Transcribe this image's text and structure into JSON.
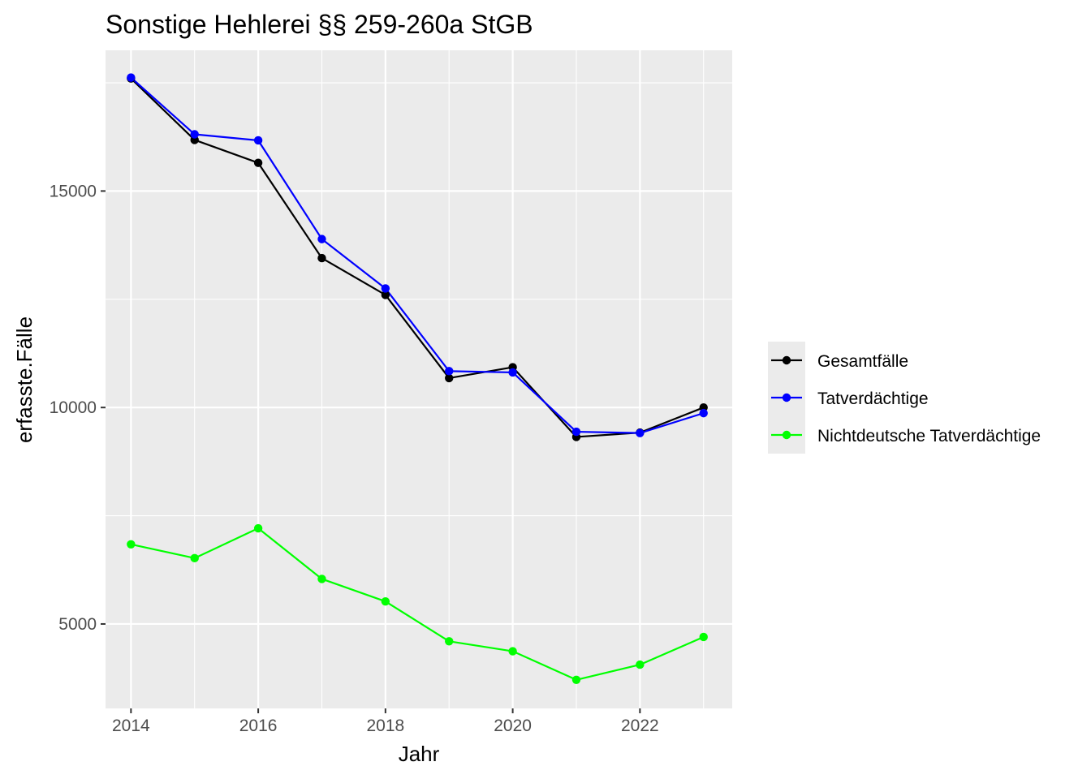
{
  "chart_data": {
    "type": "line",
    "title": "Sonstige Hehlerei §§ 259-260a StGB",
    "xlabel": "Jahr",
    "ylabel": "erfasste.Fälle",
    "x": [
      2014,
      2015,
      2016,
      2017,
      2018,
      2019,
      2020,
      2021,
      2022,
      2023
    ],
    "xlim": [
      2013.6,
      2023.45
    ],
    "ylim": [
      3050,
      18250
    ],
    "x_ticks": [
      2014,
      2016,
      2018,
      2020,
      2022
    ],
    "x_tick_labels": [
      "2014",
      "2016",
      "2018",
      "2020",
      "2022"
    ],
    "y_ticks": [
      5000,
      10000,
      15000
    ],
    "y_tick_labels": [
      "5000",
      "10000",
      "15000"
    ],
    "grid": true,
    "legend_position": "right",
    "series": [
      {
        "name": "Gesamtfälle",
        "color": "#000000",
        "values": [
          17600,
          16180,
          15650,
          13450,
          12600,
          10680,
          10930,
          9320,
          9420,
          10000
        ]
      },
      {
        "name": "Tatverdächtige",
        "color": "#0000ff",
        "values": [
          17620,
          16310,
          16170,
          13890,
          12750,
          10840,
          10810,
          9440,
          9410,
          9870
        ]
      },
      {
        "name": "Nichtdeutsche Tatverdächtige",
        "color": "#00ff00",
        "values": [
          6840,
          6520,
          7210,
          6040,
          5520,
          4600,
          4370,
          3710,
          4060,
          4700
        ]
      }
    ]
  }
}
